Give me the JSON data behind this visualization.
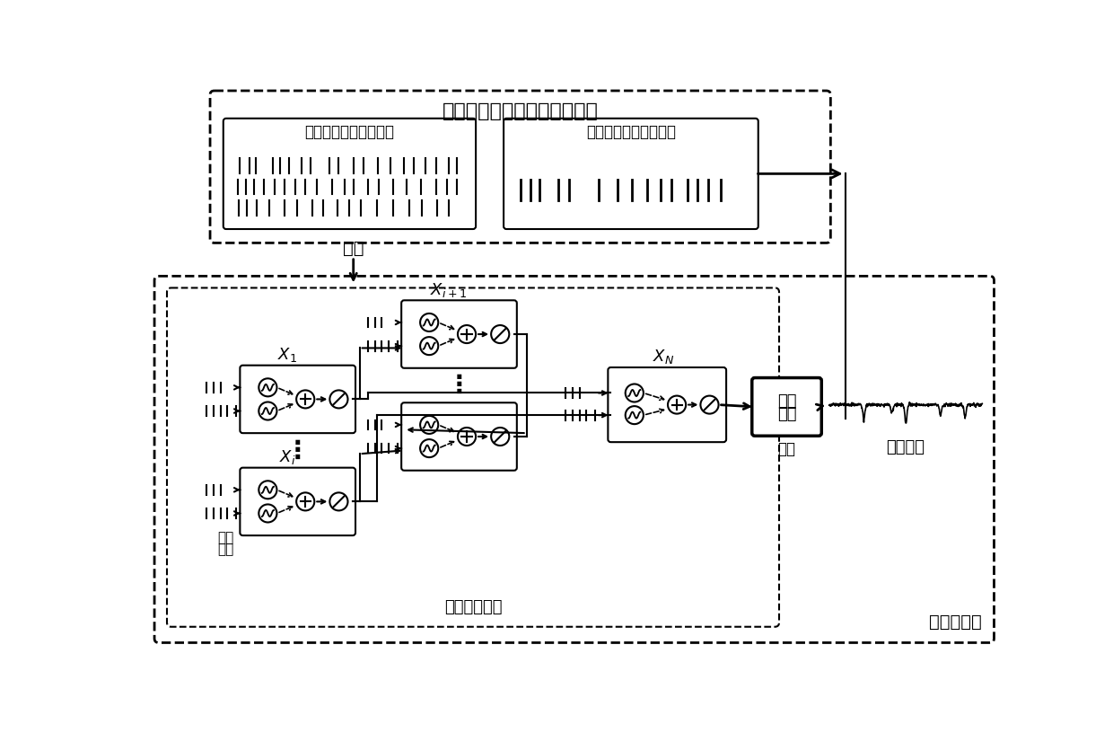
{
  "top_box_label": "实验所得在体神经元放电序列",
  "pre_box_label": "突触前神经元放电序列",
  "post_box_label": "突触后神经元放电序列",
  "fit_label": "拟合",
  "neuron_model_label": "神经元模型",
  "tree_model_label": "树突级联模型",
  "soma_label": "胞体",
  "discharge_model_line1": "放电",
  "discharge_model_line2": "模型",
  "discharge_seq_label": "放电序列",
  "synapse_input_line1": "突触",
  "synapse_input_line2": "输入",
  "bg_color": "#ffffff"
}
